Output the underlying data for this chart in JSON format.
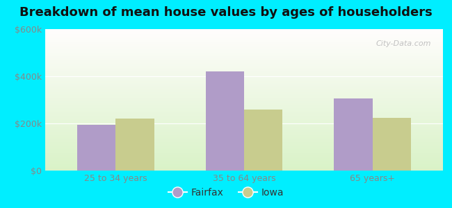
{
  "title": "Breakdown of mean house values by ages of householders",
  "categories": [
    "25 to 34 years",
    "35 to 64 years",
    "65 years+"
  ],
  "fairfax_values": [
    195000,
    420000,
    305000
  ],
  "iowa_values": [
    220000,
    260000,
    225000
  ],
  "fairfax_color": "#b09cc8",
  "iowa_color": "#c8cc8e",
  "ylim": [
    0,
    600000
  ],
  "yticks": [
    0,
    200000,
    400000,
    600000
  ],
  "ytick_labels": [
    "$0",
    "$200k",
    "$400k",
    "$600k"
  ],
  "legend_labels": [
    "Fairfax",
    "Iowa"
  ],
  "bg_outer": "#00eeff",
  "bar_width": 0.3,
  "title_fontsize": 13,
  "tick_fontsize": 9,
  "legend_fontsize": 10,
  "watermark_text": "City-Data.com"
}
